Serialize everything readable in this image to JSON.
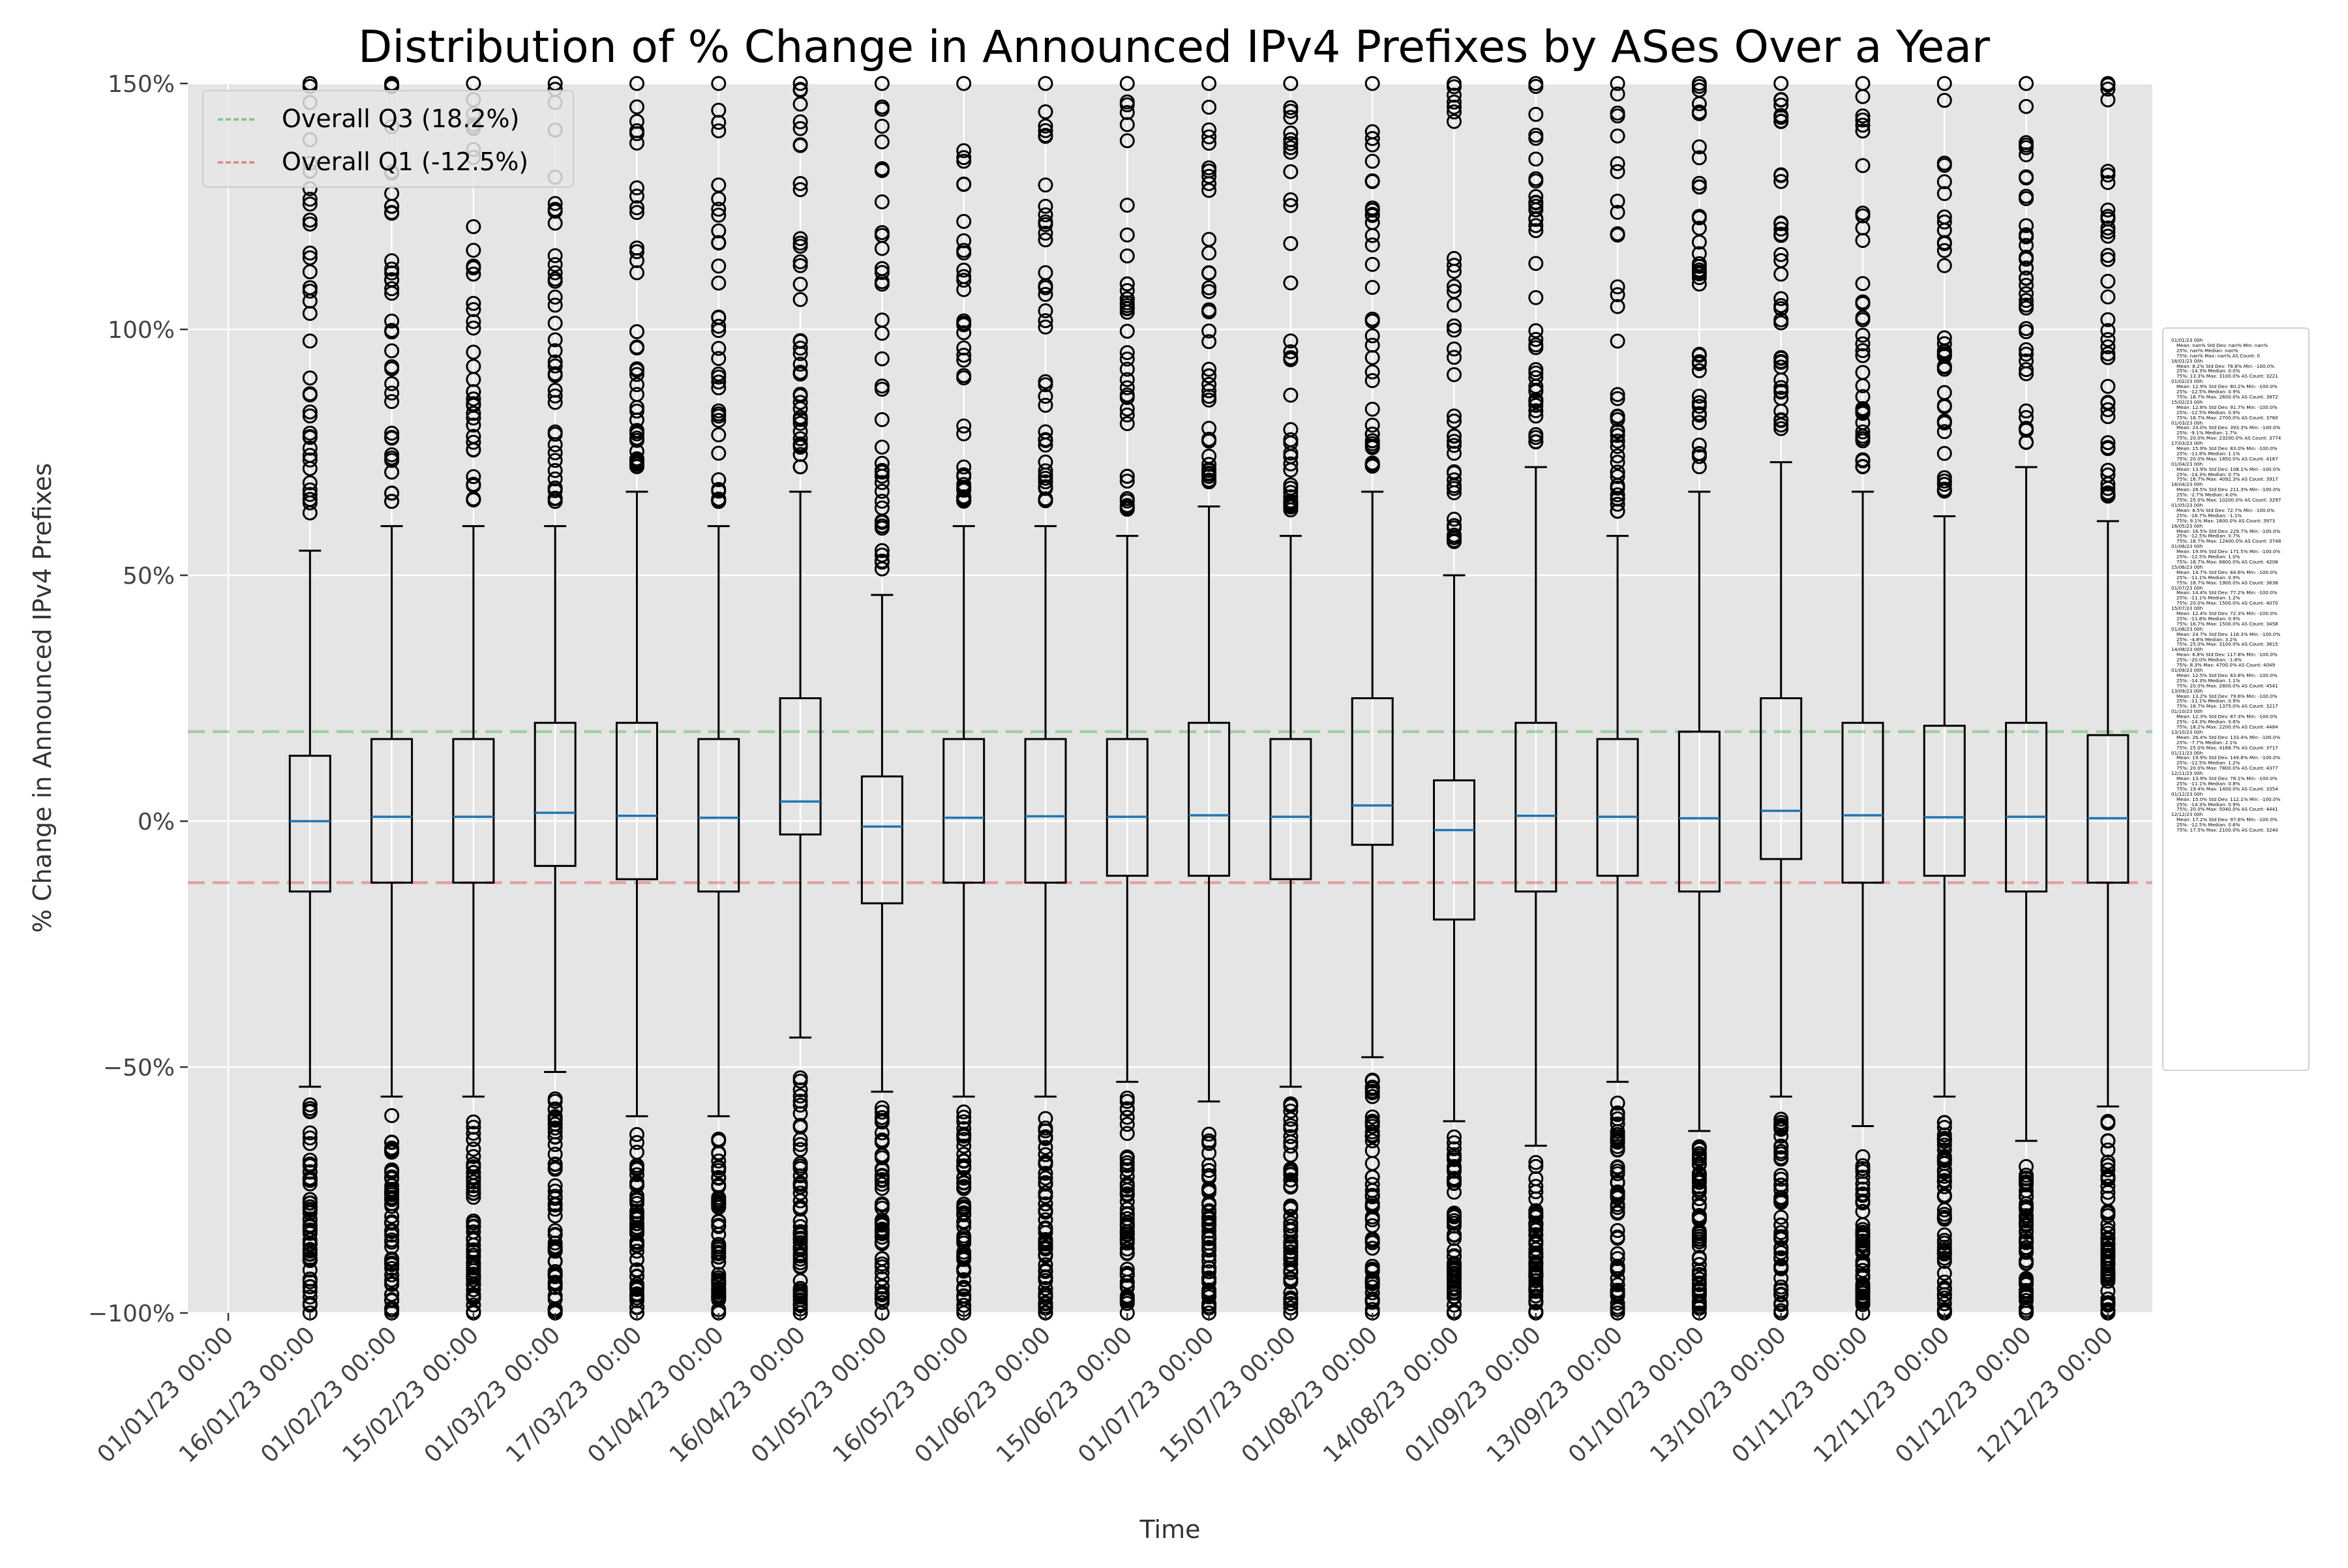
{
  "chart_data": {
    "type": "box",
    "title": "Distribution of % Change in Announced IPv4 Prefixes by ASes Over a Year",
    "xlabel": "Time",
    "ylabel": "% Change in Announced IPv4 Prefixes",
    "ylim": [
      -100,
      150
    ],
    "yticks": [
      -100,
      -50,
      0,
      50,
      100,
      150
    ],
    "ytick_labels": [
      "−100%",
      "−50%",
      "0%",
      "50%",
      "100%",
      "150%"
    ],
    "grid": true,
    "categories": [
      "01/01/23 00:00",
      "16/01/23 00:00",
      "01/02/23 00:00",
      "15/02/23 00:00",
      "01/03/23 00:00",
      "17/03/23 00:00",
      "01/04/23 00:00",
      "16/04/23 00:00",
      "01/05/23 00:00",
      "16/05/23 00:00",
      "01/06/23 00:00",
      "15/06/23 00:00",
      "01/07/23 00:00",
      "15/07/23 00:00",
      "01/08/23 00:00",
      "14/08/23 00:00",
      "01/09/23 00:00",
      "13/09/23 00:00",
      "01/10/23 00:00",
      "13/10/23 00:00",
      "01/11/23 00:00",
      "12/11/23 00:00",
      "01/12/23 00:00",
      "12/12/23 00:00"
    ],
    "boxes": [
      null,
      {
        "q1": -14.3,
        "median": 0.0,
        "q3": 13.3,
        "wlo": -54,
        "whi": 55
      },
      {
        "q1": -12.5,
        "median": 0.9,
        "q3": 16.7,
        "wlo": -56,
        "whi": 60
      },
      {
        "q1": -12.5,
        "median": 0.9,
        "q3": 16.7,
        "wlo": -56,
        "whi": 60
      },
      {
        "q1": -9.1,
        "median": 1.7,
        "q3": 20.0,
        "wlo": -51,
        "whi": 60
      },
      {
        "q1": -11.8,
        "median": 1.1,
        "q3": 20.0,
        "wlo": -60,
        "whi": 67
      },
      {
        "q1": -14.3,
        "median": 0.7,
        "q3": 16.7,
        "wlo": -60,
        "whi": 60
      },
      {
        "q1": -2.7,
        "median": 4.0,
        "q3": 25.0,
        "wlo": -44,
        "whi": 67
      },
      {
        "q1": -16.7,
        "median": -1.1,
        "q3": 9.1,
        "wlo": -55,
        "whi": 46
      },
      {
        "q1": -12.5,
        "median": 0.7,
        "q3": 16.7,
        "wlo": -56,
        "whi": 60
      },
      {
        "q1": -12.5,
        "median": 1.0,
        "q3": 16.7,
        "wlo": -56,
        "whi": 60
      },
      {
        "q1": -11.1,
        "median": 0.9,
        "q3": 16.7,
        "wlo": -53,
        "whi": 58
      },
      {
        "q1": -11.1,
        "median": 1.2,
        "q3": 20.0,
        "wlo": -57,
        "whi": 64
      },
      {
        "q1": -11.8,
        "median": 0.9,
        "q3": 16.7,
        "wlo": -54,
        "whi": 58
      },
      {
        "q1": -4.8,
        "median": 3.2,
        "q3": 25.0,
        "wlo": -48,
        "whi": 67
      },
      {
        "q1": -20.0,
        "median": -1.8,
        "q3": 8.3,
        "wlo": -61,
        "whi": 50
      },
      {
        "q1": -14.3,
        "median": 1.1,
        "q3": 20.0,
        "wlo": -66,
        "whi": 72
      },
      {
        "q1": -11.1,
        "median": 0.9,
        "q3": 16.7,
        "wlo": -53,
        "whi": 58
      },
      {
        "q1": -14.3,
        "median": 0.6,
        "q3": 18.2,
        "wlo": -63,
        "whi": 67
      },
      {
        "q1": -7.7,
        "median": 2.1,
        "q3": 25.0,
        "wlo": -56,
        "whi": 73
      },
      {
        "q1": -12.5,
        "median": 1.2,
        "q3": 20.0,
        "wlo": -62,
        "whi": 67
      },
      {
        "q1": -11.1,
        "median": 0.8,
        "q3": 19.4,
        "wlo": -56,
        "whi": 62
      },
      {
        "q1": -14.3,
        "median": 0.9,
        "q3": 20.0,
        "wlo": -65,
        "whi": 72
      },
      {
        "q1": -12.5,
        "median": 0.6,
        "q3": 17.5,
        "wlo": -58,
        "whi": 61
      }
    ],
    "reference_lines": [
      {
        "name": "Overall Q3 (18.2%)",
        "value": 18.2,
        "color": "#2ca02c",
        "style": "dashed"
      },
      {
        "name": "Overall Q1 (-12.5%)",
        "value": -12.5,
        "color": "#d62728",
        "style": "dashed"
      }
    ],
    "legend": {
      "position": "top-left",
      "entries": [
        "Overall Q3 (18.2%)",
        "Overall Q1 (-12.5%)"
      ]
    },
    "colors": {
      "background": "#e5e5e5",
      "grid": "#ffffff",
      "median": "#1f77b4",
      "box": "#000000"
    },
    "stats_annotation": [
      {
        "date": "01/01/23 00h",
        "lines": [
          "Mean: nan%  Std Dev: nan%  Min: nan%",
          "25%: nan%  Median: nan%",
          "75%: nan%  Max: nan%  AS Count: 0"
        ]
      },
      {
        "date": "16/01/23 00h",
        "lines": [
          "Mean: 8.2%  Std Dev: 78.8%  Min: -100.0%",
          "25%: -14.3%  Median: 0.0%",
          "75%: 13.3%  Max: 3100.0%  AS Count: 3221"
        ]
      },
      {
        "date": "01/02/23 00h",
        "lines": [
          "Mean: 12.9%  Std Dev: 80.2%  Min: -100.0%",
          "25%: -12.5%  Median: 0.9%",
          "75%: 16.7%  Max: 2600.0%  AS Count: 3872"
        ]
      },
      {
        "date": "15/02/23 00h",
        "lines": [
          "Mean: 12.8%  Std Dev: 91.7%  Min: -100.0%",
          "25%: -12.5%  Median: 0.9%",
          "75%: 16.7%  Max: 2700.0%  AS Count: 3760"
        ]
      },
      {
        "date": "01/03/23 00h",
        "lines": [
          "Mean: 24.0%  Std Dev: 393.3%  Min: -100.0%",
          "25%: -9.1%  Median: 1.7%",
          "75%: 20.0%  Max: 23200.0%  AS Count: 3774"
        ]
      },
      {
        "date": "17/03/23 00h",
        "lines": [
          "Mean: 15.9%  Std Dev: 83.0%  Min: -100.0%",
          "25%: -11.8%  Median: 1.1%",
          "75%: 20.0%  Max: 1850.0%  AS Count: 4187"
        ]
      },
      {
        "date": "01/04/23 00h",
        "lines": [
          "Mean: 13.9%  Std Dev: 108.1%  Min: -100.0%",
          "25%: -14.3%  Median: 0.7%",
          "75%: 16.7%  Max: 4092.3%  AS Count: 3917"
        ]
      },
      {
        "date": "16/04/23 00h",
        "lines": [
          "Mean: 28.5%  Std Dev: 211.3%  Min: -100.0%",
          "25%: -2.7%  Median: 4.0%",
          "75%: 25.0%  Max: 10200.0%  AS Count: 3297"
        ]
      },
      {
        "date": "01/05/23 00h",
        "lines": [
          "Mean: 8.5%  Std Dev: 72.7%  Min: -100.0%",
          "25%: -16.7%  Median: -1.1%",
          "75%: 9.1%  Max: 1600.0%  AS Count: 3973"
        ]
      },
      {
        "date": "16/05/23 00h",
        "lines": [
          "Mean: 16.5%  Std Dev: 229.7%  Min: -100.0%",
          "25%: -12.5%  Median: 0.7%",
          "75%: 16.7%  Max: 12400.0%  AS Count: 3748"
        ]
      },
      {
        "date": "01/06/23 00h",
        "lines": [
          "Mean: 19.9%  Std Dev: 171.5%  Min: -100.0%",
          "25%: -12.5%  Median: 1.0%",
          "75%: 16.7%  Max: 6800.0%  AS Count: 4208"
        ]
      },
      {
        "date": "15/06/23 00h",
        "lines": [
          "Mean: 14.7%  Std Dev: 84.6%  Min: -100.0%",
          "25%: -11.1%  Median: 0.9%",
          "75%: 16.7%  Max: 1900.0%  AS Count: 3638"
        ]
      },
      {
        "date": "01/07/23 00h",
        "lines": [
          "Mean: 14.4%  Std Dev: 77.2%  Min: -100.0%",
          "25%: -11.1%  Median: 1.2%",
          "75%: 20.0%  Max: 1500.0%  AS Count: 4070"
        ]
      },
      {
        "date": "15/07/23 00h",
        "lines": [
          "Mean: 12.4%  Std Dev: 72.3%  Min: -100.0%",
          "25%: -11.8%  Median: 0.9%",
          "75%: 16.7%  Max: 1500.0%  AS Count: 3458"
        ]
      },
      {
        "date": "01/08/23 00h",
        "lines": [
          "Mean: 24.7%  Std Dev: 116.3%  Min: -100.0%",
          "25%: -4.8%  Median: 3.2%",
          "75%: 25.0%  Max: 3100.0%  AS Count: 3615"
        ]
      },
      {
        "date": "14/08/23 00h",
        "lines": [
          "Mean: 6.8%  Std Dev: 117.8%  Min: -100.0%",
          "25%: -20.0%  Median: -1.8%",
          "75%: 8.3%  Max: 4700.0%  AS Count: 4049"
        ]
      },
      {
        "date": "01/09/23 00h",
        "lines": [
          "Mean: 12.5%  Std Dev: 83.8%  Min: -100.0%",
          "25%: -14.3%  Median: 1.1%",
          "75%: 20.0%  Max: 2800.0%  AS Count: 4541"
        ]
      },
      {
        "date": "13/09/23 00h",
        "lines": [
          "Mean: 13.2%  Std Dev: 79.6%  Min: -100.0%",
          "25%: -11.1%  Median: 0.9%",
          "75%: 16.7%  Max: 1375.0%  AS Count: 3217"
        ]
      },
      {
        "date": "01/10/23 00h",
        "lines": [
          "Mean: 12.3%  Std Dev: 87.3%  Min: -100.0%",
          "25%: -14.3%  Median: 0.6%",
          "75%: 18.2%  Max: 2200.0%  AS Count: 4484"
        ]
      },
      {
        "date": "13/10/23 00h",
        "lines": [
          "Mean: 26.4%  Std Dev: 133.4%  Min: -100.0%",
          "25%: -7.7%  Median: 2.1%",
          "75%: 25.0%  Max: 4166.7%  AS Count: 3717"
        ]
      },
      {
        "date": "01/11/23 00h",
        "lines": [
          "Mean: 19.9%  Std Dev: 149.8%  Min: -100.0%",
          "25%: -12.5%  Median: 1.2%",
          "75%: 20.0%  Max: 7800.0%  AS Count: 4377"
        ]
      },
      {
        "date": "12/11/23 00h",
        "lines": [
          "Mean: 13.9%  Std Dev: 78.1%  Min: -100.0%",
          "25%: -11.1%  Median: 0.8%",
          "75%: 19.4%  Max: 1400.0%  AS Count: 3354"
        ]
      },
      {
        "date": "01/12/23 00h",
        "lines": [
          "Mean: 15.0%  Std Dev: 112.1%  Min: -100.0%",
          "25%: -14.3%  Median: 0.9%",
          "75%: 20.0%  Max: 5040.0%  AS Count: 4441"
        ]
      },
      {
        "date": "12/12/23 00h",
        "lines": [
          "Mean: 17.2%  Std Dev: 97.6%  Min: -100.0%",
          "25%: -12.5%  Median: 0.6%",
          "75%: 17.5%  Max: 2100.0%  AS Count: 3240"
        ]
      }
    ]
  }
}
